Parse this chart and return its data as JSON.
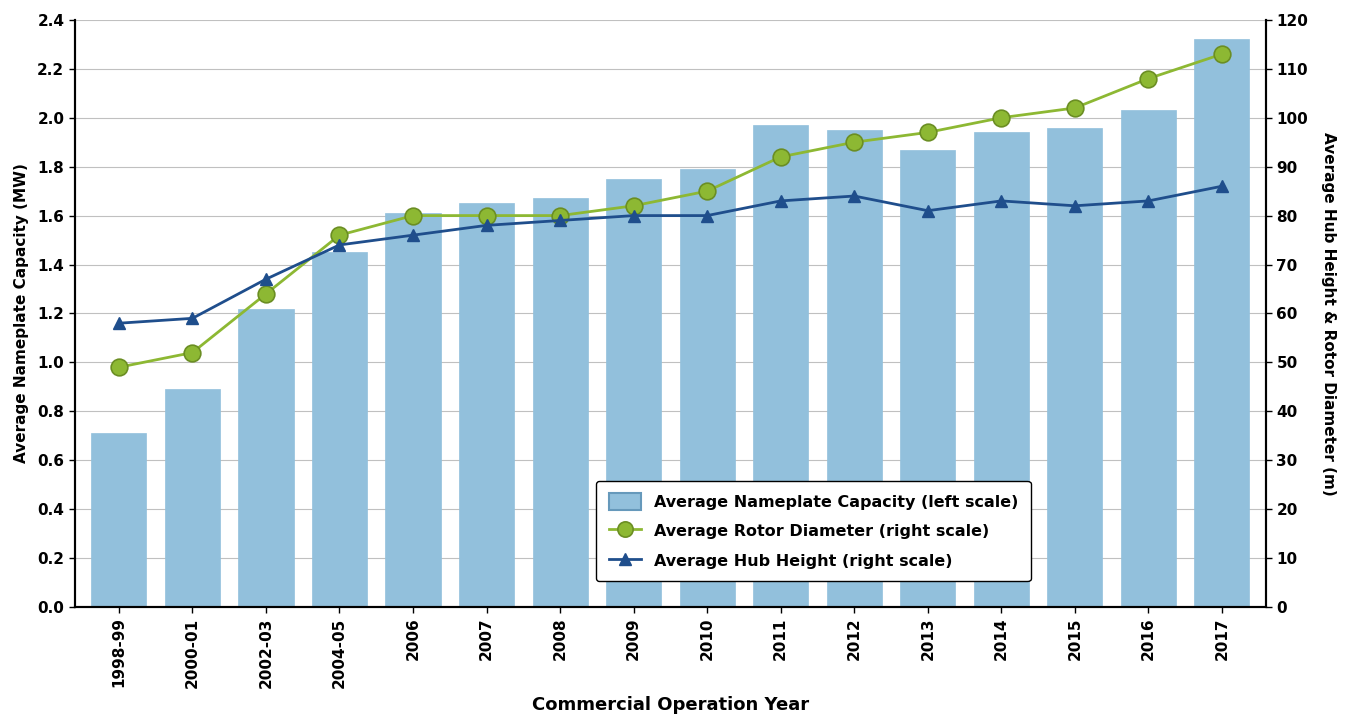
{
  "categories": [
    "1998-99",
    "2000-01",
    "2002-03",
    "2004-05",
    "2006",
    "2007",
    "2008",
    "2009",
    "2010",
    "2011",
    "2012",
    "2013",
    "2014",
    "2015",
    "2016",
    "2017"
  ],
  "bar_values": [
    0.71,
    0.89,
    1.22,
    1.45,
    1.61,
    1.65,
    1.67,
    1.75,
    1.79,
    1.97,
    1.95,
    1.87,
    1.94,
    1.96,
    2.03,
    2.32
  ],
  "rotor_diameter": [
    49,
    52,
    64,
    76,
    80,
    80,
    80,
    82,
    85,
    92,
    95,
    97,
    100,
    102,
    108,
    113
  ],
  "hub_height": [
    58,
    59,
    67,
    74,
    76,
    78,
    79,
    80,
    80,
    83,
    84,
    81,
    83,
    82,
    83,
    86
  ],
  "bar_color": "#92C0DC",
  "rotor_color": "#8DB833",
  "rotor_edge_color": "#6B8E23",
  "hub_color": "#1F4E8C",
  "hub_edge_color": "#1F4E8C",
  "grid_color": "#C0C0C0",
  "xlabel": "Commercial Operation Year",
  "ylabel_left": "Average Nameplate Capacity (MW)",
  "ylabel_right": "Average Hub Height & Rotor Diameter (m)",
  "ylim_left": [
    0.0,
    2.4
  ],
  "ylim_right": [
    0,
    120
  ],
  "yticks_left": [
    0.0,
    0.2,
    0.4,
    0.6,
    0.8,
    1.0,
    1.2,
    1.4,
    1.6,
    1.8,
    2.0,
    2.2,
    2.4
  ],
  "yticks_right": [
    0,
    10,
    20,
    30,
    40,
    50,
    60,
    70,
    80,
    90,
    100,
    110,
    120
  ],
  "legend_labels": [
    "Average Nameplate Capacity (left scale)",
    "Average Rotor Diameter (right scale)",
    "Average Hub Height (right scale)"
  ],
  "figsize": [
    13.5,
    7.28
  ],
  "dpi": 100
}
